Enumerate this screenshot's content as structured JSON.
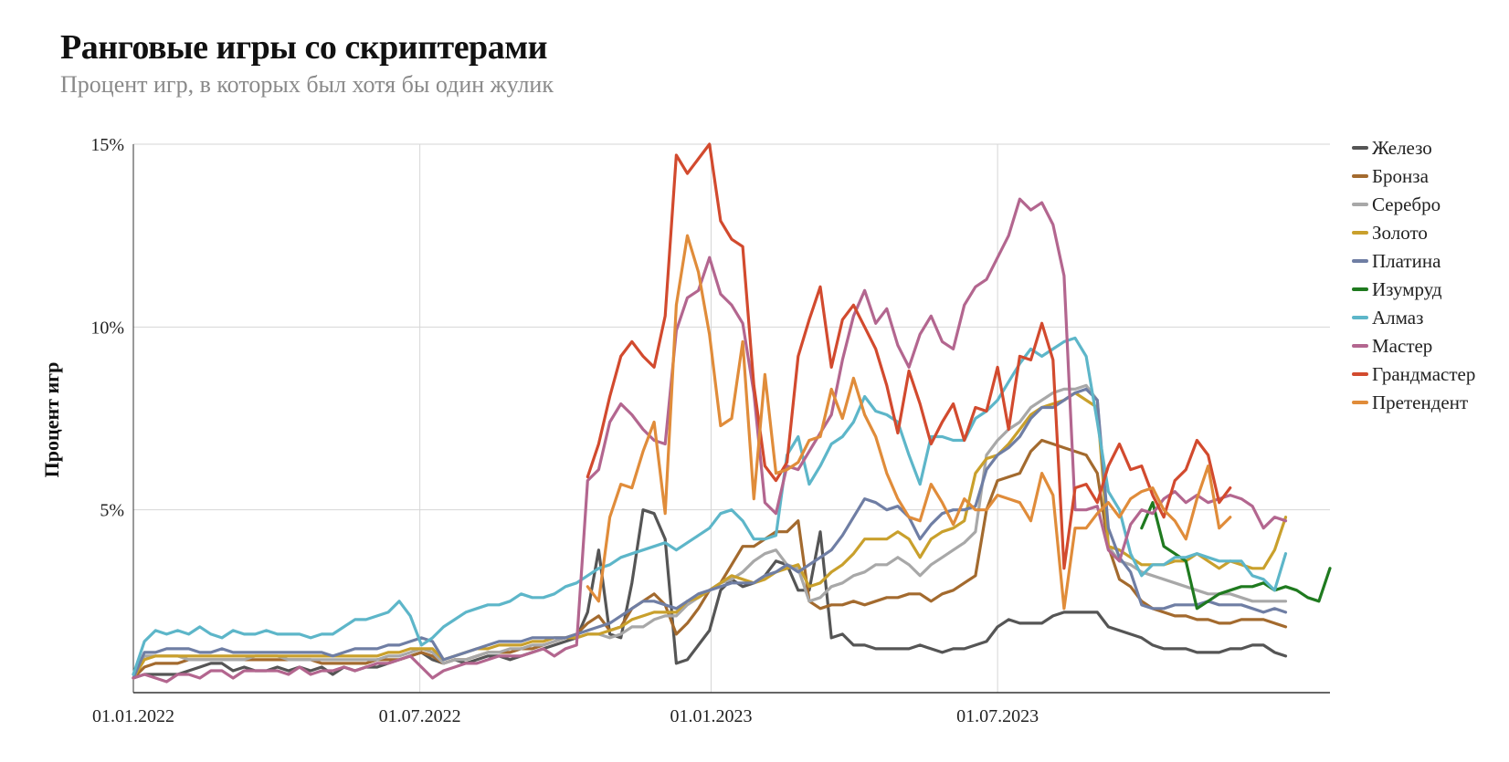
{
  "chart_data": {
    "type": "line",
    "title": "Ранговые игры со скриптерами",
    "subtitle": "Процент игр, в которых был хотя бы один жулик",
    "ylabel": "Процент игр",
    "xlabel": "",
    "x_start": "2022-01-01",
    "x_step_days": 7,
    "x_ticks": [
      "01.01.2022",
      "01.07.2022",
      "01.01.2023",
      "01.07.2023"
    ],
    "y_ticks": [
      "5%",
      "10%",
      "15%"
    ],
    "ylim": [
      0,
      15
    ],
    "grid": true,
    "legend_position": "right",
    "series": [
      {
        "name": "Железо",
        "color": "#555555",
        "start_index": 0,
        "values": [
          0.4,
          0.5,
          0.5,
          0.5,
          0.5,
          0.6,
          0.7,
          0.8,
          0.8,
          0.6,
          0.7,
          0.6,
          0.6,
          0.7,
          0.6,
          0.7,
          0.6,
          0.7,
          0.5,
          0.7,
          0.6,
          0.7,
          0.7,
          0.8,
          0.9,
          1.0,
          1.1,
          0.9,
          0.8,
          0.9,
          0.8,
          0.9,
          1.0,
          1.0,
          0.9,
          1.0,
          1.1,
          1.2,
          1.3,
          1.4,
          1.5,
          2.2,
          3.9,
          1.6,
          1.5,
          3.0,
          5.0,
          4.9,
          4.2,
          0.8,
          0.9,
          1.3,
          1.7,
          2.8,
          3.1,
          2.9,
          3.0,
          3.2,
          3.6,
          3.5,
          2.8,
          2.8,
          4.4,
          1.5,
          1.6,
          1.3,
          1.3,
          1.2,
          1.2,
          1.2,
          1.2,
          1.3,
          1.2,
          1.1,
          1.2,
          1.2,
          1.3,
          1.4,
          1.8,
          2.0,
          1.9,
          1.9,
          1.9,
          2.1,
          2.2,
          2.2,
          2.2,
          2.2,
          1.8,
          1.7,
          1.6,
          1.5,
          1.3,
          1.2,
          1.2,
          1.2,
          1.1,
          1.1,
          1.1,
          1.2,
          1.2,
          1.3,
          1.3,
          1.1,
          1.0
        ]
      },
      {
        "name": "Бронза",
        "color": "#a36a2e",
        "start_index": 0,
        "values": [
          0.4,
          0.7,
          0.8,
          0.8,
          0.8,
          0.9,
          0.9,
          0.9,
          0.9,
          0.9,
          0.9,
          0.9,
          0.9,
          0.9,
          0.9,
          0.9,
          0.9,
          0.8,
          0.8,
          0.8,
          0.8,
          0.8,
          0.9,
          0.9,
          0.9,
          1.0,
          1.1,
          1.0,
          0.8,
          0.9,
          0.9,
          1.0,
          1.1,
          1.1,
          1.1,
          1.2,
          1.2,
          1.3,
          1.4,
          1.5,
          1.6,
          1.9,
          2.1,
          1.7,
          1.8,
          2.3,
          2.5,
          2.7,
          2.4,
          1.6,
          1.9,
          2.3,
          2.8,
          3.0,
          3.5,
          4.0,
          4.0,
          4.2,
          4.4,
          4.4,
          4.7,
          2.5,
          2.3,
          2.4,
          2.4,
          2.5,
          2.4,
          2.5,
          2.6,
          2.6,
          2.7,
          2.7,
          2.5,
          2.7,
          2.8,
          3.0,
          3.2,
          5.0,
          5.8,
          5.9,
          6.0,
          6.6,
          6.9,
          6.8,
          6.7,
          6.6,
          6.5,
          6.0,
          4.0,
          3.1,
          2.9,
          2.5,
          2.3,
          2.2,
          2.1,
          2.1,
          2.0,
          2.0,
          1.9,
          1.9,
          2.0,
          2.0,
          2.0,
          1.9,
          1.8
        ]
      },
      {
        "name": "Серебро",
        "color": "#a8a8a8",
        "start_index": 0,
        "values": [
          0.5,
          1.0,
          1.0,
          1.0,
          1.0,
          0.9,
          0.9,
          0.9,
          0.9,
          0.9,
          0.9,
          1.0,
          1.0,
          1.0,
          0.9,
          0.9,
          0.9,
          0.9,
          0.9,
          0.9,
          0.9,
          0.9,
          0.9,
          1.0,
          1.0,
          1.1,
          1.2,
          1.1,
          0.8,
          0.9,
          0.9,
          1.0,
          1.1,
          1.1,
          1.2,
          1.2,
          1.3,
          1.3,
          1.4,
          1.5,
          1.5,
          1.6,
          1.6,
          1.5,
          1.6,
          1.8,
          1.8,
          2.0,
          2.1,
          2.1,
          2.4,
          2.6,
          2.8,
          3.0,
          3.1,
          3.3,
          3.6,
          3.8,
          3.9,
          3.5,
          3.4,
          2.5,
          2.6,
          2.9,
          3.0,
          3.2,
          3.3,
          3.5,
          3.5,
          3.7,
          3.5,
          3.2,
          3.5,
          3.7,
          3.9,
          4.1,
          4.4,
          6.5,
          6.9,
          7.2,
          7.4,
          7.8,
          8.0,
          8.2,
          8.3,
          8.3,
          8.4,
          8.0,
          4.0,
          3.6,
          3.5,
          3.3,
          3.2,
          3.1,
          3.0,
          2.9,
          2.8,
          2.7,
          2.7,
          2.7,
          2.6,
          2.5,
          2.5,
          2.5,
          2.5
        ]
      },
      {
        "name": "Золото",
        "color": "#c9a02c",
        "start_index": 0,
        "values": [
          0.4,
          0.9,
          1.0,
          1.0,
          1.0,
          1.0,
          1.0,
          1.0,
          1.0,
          1.0,
          1.0,
          1.0,
          1.0,
          1.0,
          1.0,
          1.0,
          1.0,
          1.0,
          1.0,
          1.0,
          1.0,
          1.0,
          1.0,
          1.1,
          1.1,
          1.2,
          1.2,
          1.2,
          0.9,
          1.0,
          1.1,
          1.2,
          1.2,
          1.3,
          1.3,
          1.3,
          1.4,
          1.4,
          1.5,
          1.5,
          1.5,
          1.6,
          1.6,
          1.7,
          1.8,
          2.0,
          2.1,
          2.2,
          2.2,
          2.2,
          2.5,
          2.6,
          2.8,
          3.0,
          3.2,
          3.1,
          3.0,
          3.1,
          3.3,
          3.4,
          3.5,
          2.9,
          3.0,
          3.3,
          3.5,
          3.8,
          4.2,
          4.2,
          4.2,
          4.4,
          4.2,
          3.7,
          4.2,
          4.4,
          4.5,
          4.7,
          6.0,
          6.4,
          6.5,
          6.8,
          7.2,
          7.6,
          7.8,
          7.9,
          8.0,
          8.2,
          8.0,
          7.8,
          4.0,
          3.9,
          3.7,
          3.5,
          3.5,
          3.5,
          3.6,
          3.6,
          3.8,
          3.6,
          3.4,
          3.6,
          3.5,
          3.4,
          3.4,
          3.9,
          4.8
        ]
      },
      {
        "name": "Платина",
        "color": "#6f7ea4",
        "start_index": 0,
        "values": [
          0.4,
          1.1,
          1.1,
          1.2,
          1.2,
          1.2,
          1.1,
          1.1,
          1.2,
          1.1,
          1.1,
          1.1,
          1.1,
          1.1,
          1.1,
          1.1,
          1.1,
          1.1,
          1.0,
          1.1,
          1.2,
          1.2,
          1.2,
          1.3,
          1.3,
          1.4,
          1.5,
          1.4,
          0.9,
          1.0,
          1.1,
          1.2,
          1.3,
          1.4,
          1.4,
          1.4,
          1.5,
          1.5,
          1.5,
          1.5,
          1.6,
          1.7,
          1.8,
          1.9,
          2.1,
          2.3,
          2.5,
          2.5,
          2.4,
          2.3,
          2.5,
          2.7,
          2.8,
          2.9,
          3.0,
          3.0,
          3.0,
          3.2,
          3.3,
          3.5,
          3.3,
          3.5,
          3.7,
          3.9,
          4.3,
          4.8,
          5.3,
          5.2,
          5.0,
          5.1,
          4.8,
          4.2,
          4.6,
          4.9,
          5.0,
          5.0,
          5.1,
          6.1,
          6.5,
          6.7,
          7.0,
          7.5,
          7.8,
          7.8,
          8.0,
          8.2,
          8.3,
          8.0,
          4.5,
          3.7,
          3.3,
          2.4,
          2.3,
          2.3,
          2.4,
          2.4,
          2.4,
          2.5,
          2.4,
          2.4,
          2.4,
          2.3,
          2.2,
          2.3,
          2.2
        ]
      },
      {
        "name": "Изумруд",
        "color": "#1f7a1f",
        "start_index": 91,
        "values": [
          4.5,
          5.2,
          4.0,
          3.8,
          3.6,
          2.3,
          2.5,
          2.7,
          2.8,
          2.9,
          2.9,
          3.0,
          2.8,
          2.9,
          2.8,
          2.6,
          2.5,
          3.4
        ]
      },
      {
        "name": "Алмаз",
        "color": "#5db6c9",
        "start_index": 0,
        "values": [
          0.5,
          1.4,
          1.7,
          1.6,
          1.7,
          1.6,
          1.8,
          1.6,
          1.5,
          1.7,
          1.6,
          1.6,
          1.7,
          1.6,
          1.6,
          1.6,
          1.5,
          1.6,
          1.6,
          1.8,
          2.0,
          2.0,
          2.1,
          2.2,
          2.5,
          2.1,
          1.3,
          1.5,
          1.8,
          2.0,
          2.2,
          2.3,
          2.4,
          2.4,
          2.5,
          2.7,
          2.6,
          2.6,
          2.7,
          2.9,
          3.0,
          3.2,
          3.4,
          3.5,
          3.7,
          3.8,
          3.9,
          4.0,
          4.1,
          3.9,
          4.1,
          4.3,
          4.5,
          4.9,
          5.0,
          4.7,
          4.2,
          4.2,
          4.3,
          6.5,
          7.0,
          5.7,
          6.2,
          6.8,
          7.0,
          7.4,
          8.1,
          7.7,
          7.6,
          7.4,
          6.5,
          5.7,
          7.0,
          7.0,
          6.9,
          6.9,
          7.5,
          7.7,
          8.0,
          8.5,
          9.0,
          9.4,
          9.2,
          9.4,
          9.6,
          9.7,
          9.2,
          7.4,
          5.5,
          5.0,
          3.8,
          3.2,
          3.5,
          3.5,
          3.7,
          3.7,
          3.8,
          3.7,
          3.6,
          3.6,
          3.6,
          3.2,
          3.1,
          2.8,
          3.8
        ]
      },
      {
        "name": "Мастер",
        "color": "#b3668f",
        "start_index": 0,
        "values": [
          0.4,
          0.5,
          0.4,
          0.3,
          0.5,
          0.5,
          0.4,
          0.6,
          0.6,
          0.4,
          0.6,
          0.6,
          0.6,
          0.6,
          0.5,
          0.7,
          0.5,
          0.6,
          0.6,
          0.7,
          0.6,
          0.7,
          0.8,
          0.8,
          0.9,
          1.0,
          0.7,
          0.4,
          0.6,
          0.7,
          0.8,
          0.8,
          0.9,
          1.0,
          1.0,
          1.0,
          1.1,
          1.2,
          1.0,
          1.2,
          1.3,
          5.8,
          6.1,
          7.4,
          7.9,
          7.6,
          7.2,
          6.9,
          6.8,
          9.9,
          10.8,
          11.0,
          11.9,
          10.9,
          10.6,
          10.1,
          8.2,
          5.2,
          4.9,
          6.2,
          6.1,
          6.6,
          7.1,
          7.6,
          9.1,
          10.3,
          11.0,
          10.1,
          10.5,
          9.5,
          8.9,
          9.8,
          10.3,
          9.6,
          9.4,
          10.6,
          11.1,
          11.3,
          11.9,
          12.5,
          13.5,
          13.2,
          13.4,
          12.8,
          11.4,
          5.0,
          5.0,
          5.1,
          3.9,
          3.6,
          4.6,
          5.0,
          4.9,
          5.3,
          5.5,
          5.2,
          5.4,
          5.2,
          5.3,
          5.4,
          5.3,
          5.1,
          4.5,
          4.8,
          4.7
        ]
      },
      {
        "name": "Грандмастер",
        "color": "#d24a2e",
        "start_index": 41,
        "values": [
          5.9,
          6.8,
          8.1,
          9.2,
          9.6,
          9.2,
          8.9,
          10.3,
          14.7,
          14.2,
          14.6,
          15.0,
          12.9,
          12.4,
          12.2,
          8.4,
          6.2,
          5.8,
          6.3,
          9.2,
          10.2,
          11.1,
          8.9,
          10.2,
          10.6,
          10.0,
          9.4,
          8.4,
          7.1,
          8.8,
          7.9,
          6.8,
          7.4,
          7.9,
          6.9,
          7.8,
          7.7,
          8.9,
          7.2,
          9.2,
          9.1,
          10.1,
          9.1,
          3.4,
          5.6,
          5.7,
          5.2,
          6.2,
          6.8,
          6.1,
          6.2,
          5.4,
          4.8,
          5.8,
          6.1,
          6.9,
          6.5,
          5.2,
          5.6
        ]
      },
      {
        "name": "Претендент",
        "color": "#e08c3a",
        "start_index": 41,
        "values": [
          2.9,
          2.5,
          4.8,
          5.7,
          5.6,
          6.6,
          7.4,
          4.9,
          10.6,
          12.5,
          11.5,
          9.8,
          7.3,
          7.5,
          9.6,
          5.3,
          8.7,
          6.0,
          6.1,
          6.3,
          6.9,
          7.0,
          8.3,
          7.5,
          8.6,
          7.6,
          7.0,
          6.0,
          5.3,
          4.8,
          4.7,
          5.7,
          5.2,
          4.6,
          5.3,
          5.0,
          5.0,
          5.4,
          5.3,
          5.2,
          4.7,
          6.0,
          5.4,
          2.3,
          4.5,
          4.5,
          4.9,
          5.2,
          4.8,
          5.3,
          5.5,
          5.6,
          5.0,
          4.7,
          4.2,
          5.3,
          6.2,
          4.5,
          4.8
        ]
      }
    ]
  }
}
